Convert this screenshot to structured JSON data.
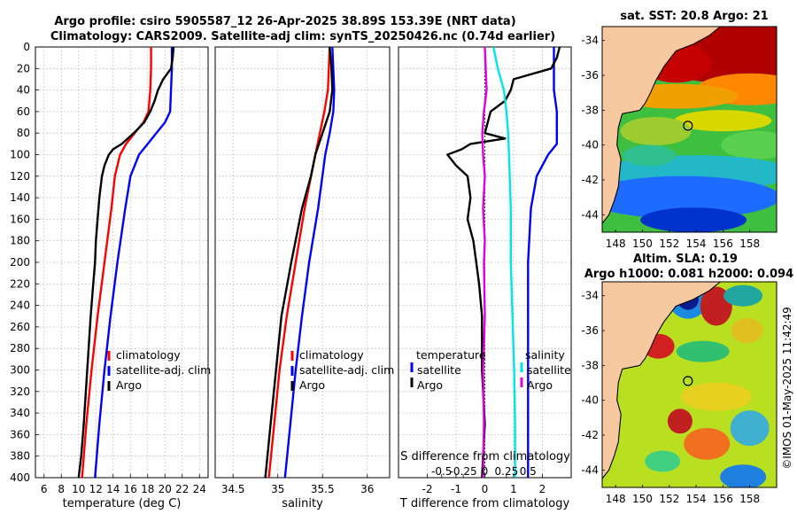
{
  "titles": {
    "line1": "Argo profile: csiro 5905587_12 26-Apr-2025 38.89S 153.39E (NRT data)",
    "line2": "Climatology: CARS2009. Satellite-adj clim: synTS_20250426.nc (0.74d earlier)",
    "sst": "sat. SST: 20.8 Argo: 21",
    "sla1": "Altim. SLA: 0.19",
    "sla2": "Argo h1000: 0.081 h2000: 0.094"
  },
  "credit": "©IMOS 01-May-2025 11:42:49",
  "colors": {
    "climatology": "#ff0000",
    "satellite": "#0000ff",
    "argo": "#000000",
    "sal_diff_sat": "#00e5e5",
    "sal_diff_argo": "#e000e0",
    "land": "#f8c9a0"
  },
  "chart_data": [
    {
      "type": "line",
      "id": "temperature",
      "xlabel": "temperature (deg C)",
      "ylabel": "",
      "xlim": [
        5,
        25
      ],
      "ylim": [
        400,
        0
      ],
      "xticks": [
        "6",
        "8",
        "10",
        "12",
        "14",
        "16",
        "18",
        "20",
        "22",
        "24"
      ],
      "xtick_values": [
        6,
        8,
        10,
        12,
        14,
        16,
        18,
        20,
        22,
        24
      ],
      "yticks": [
        "0",
        "20",
        "40",
        "60",
        "80",
        "100",
        "120",
        "140",
        "160",
        "180",
        "200",
        "220",
        "240",
        "260",
        "280",
        "300",
        "320",
        "340",
        "360",
        "380",
        "400"
      ],
      "ytick_values": [
        0,
        20,
        40,
        60,
        80,
        100,
        120,
        140,
        160,
        180,
        200,
        220,
        240,
        260,
        280,
        300,
        320,
        340,
        360,
        380,
        400
      ],
      "legend": [
        "climatology",
        "satellite-adj. clim",
        "Argo"
      ],
      "series": [
        {
          "name": "climatology",
          "depth": [
            0,
            20,
            40,
            60,
            70,
            80,
            90,
            100,
            120,
            150,
            200,
            250,
            300,
            350,
            400
          ],
          "values": [
            18.4,
            18.4,
            18.3,
            18.1,
            17.5,
            16.5,
            15.5,
            14.8,
            14.2,
            13.8,
            13.0,
            12.2,
            11.5,
            10.9,
            10.4
          ]
        },
        {
          "name": "satellite-adj. clim",
          "depth": [
            0,
            20,
            40,
            60,
            70,
            80,
            90,
            100,
            120,
            150,
            200,
            250,
            300,
            350,
            400
          ],
          "values": [
            20.8,
            20.8,
            20.7,
            20.6,
            20.0,
            19.0,
            18.0,
            17.0,
            16.0,
            15.4,
            14.5,
            13.7,
            13.0,
            12.4,
            11.9
          ]
        },
        {
          "name": "Argo",
          "depth": [
            0,
            10,
            20,
            30,
            40,
            50,
            60,
            70,
            80,
            90,
            95,
            100,
            110,
            120,
            140,
            160,
            180,
            200,
            220,
            250,
            300,
            350,
            380,
            400
          ],
          "values": [
            21.0,
            20.9,
            20.7,
            19.8,
            19.2,
            18.8,
            18.3,
            17.6,
            16.4,
            15.0,
            14.0,
            13.5,
            13.0,
            12.7,
            12.4,
            12.2,
            12.0,
            11.9,
            11.7,
            11.4,
            11.0,
            10.6,
            10.3,
            10.0
          ]
        }
      ]
    },
    {
      "type": "line",
      "id": "salinity",
      "xlabel": "salinity",
      "ylabel": "",
      "xlim": [
        34.3,
        36.25
      ],
      "ylim": [
        400,
        0
      ],
      "xticks": [
        "34.5",
        "35",
        "35.5",
        "36"
      ],
      "xtick_values": [
        34.5,
        35,
        35.5,
        36
      ],
      "legend": [
        "climatology",
        "satellite-adj. clim",
        "Argo"
      ],
      "series": [
        {
          "name": "climatology",
          "depth": [
            0,
            40,
            60,
            80,
            100,
            150,
            200,
            250,
            300,
            350,
            400
          ],
          "values": [
            35.58,
            35.56,
            35.52,
            35.47,
            35.42,
            35.3,
            35.2,
            35.1,
            35.02,
            34.96,
            34.9
          ]
        },
        {
          "name": "satellite-adj. clim",
          "depth": [
            0,
            40,
            60,
            80,
            100,
            150,
            200,
            250,
            300,
            350,
            400
          ],
          "values": [
            35.61,
            35.63,
            35.62,
            35.58,
            35.53,
            35.45,
            35.35,
            35.27,
            35.2,
            35.14,
            35.08
          ]
        },
        {
          "name": "Argo",
          "depth": [
            0,
            20,
            40,
            60,
            80,
            100,
            120,
            150,
            200,
            250,
            300,
            350,
            400
          ],
          "values": [
            35.58,
            35.6,
            35.61,
            35.58,
            35.5,
            35.42,
            35.37,
            35.27,
            35.15,
            35.04,
            34.98,
            34.92,
            34.86
          ]
        }
      ]
    },
    {
      "type": "line",
      "id": "differences",
      "xlabel": "T difference from climatology",
      "xlabel_top": "S difference from climatology",
      "xlim": [
        -3,
        3
      ],
      "ylim": [
        400,
        0
      ],
      "xticks": [
        "-2",
        "-1",
        "0",
        "1",
        "2"
      ],
      "xtick_values": [
        -2,
        -1,
        0,
        1,
        2
      ],
      "sticks": [
        "-0.5",
        "-0.25",
        "0",
        "0.25",
        "0.5"
      ],
      "stick_values_T": [
        -1.5,
        -0.75,
        0,
        0.75,
        1.5
      ],
      "legend_temperature": [
        "temperature",
        "satellite",
        "Argo"
      ],
      "legend_salinity": [
        "salinity",
        "satellite",
        "Argo"
      ],
      "series": [
        {
          "name": "temperature satellite",
          "depth": [
            0,
            20,
            40,
            60,
            70,
            80,
            90,
            100,
            120,
            150,
            200,
            250,
            300,
            350,
            400
          ],
          "values": [
            2.4,
            2.4,
            2.4,
            2.5,
            2.5,
            2.5,
            2.5,
            2.2,
            1.8,
            1.6,
            1.5,
            1.5,
            1.5,
            1.5,
            1.5
          ]
        },
        {
          "name": "temperature Argo",
          "depth": [
            0,
            10,
            20,
            30,
            40,
            50,
            60,
            70,
            80,
            85,
            90,
            95,
            100,
            110,
            120,
            140,
            160,
            180,
            200,
            220,
            250,
            300,
            350,
            400
          ],
          "values": [
            2.6,
            2.5,
            2.3,
            1.0,
            0.9,
            0.7,
            0.2,
            0.1,
            0.0,
            0.7,
            -0.5,
            -0.8,
            -1.3,
            -1.0,
            -0.6,
            -0.5,
            -0.6,
            -0.4,
            -0.3,
            -0.2,
            -0.1,
            -0.1,
            0.0,
            -0.1
          ]
        },
        {
          "name": "salinity satellite",
          "depth": [
            0,
            20,
            40,
            60,
            80,
            100,
            150,
            200,
            250,
            300,
            350,
            400
          ],
          "values": [
            0.1,
            0.15,
            0.22,
            0.25,
            0.27,
            0.28,
            0.3,
            0.3,
            0.32,
            0.34,
            0.35,
            0.35
          ]
        },
        {
          "name": "salinity Argo",
          "depth": [
            0,
            20,
            40,
            60,
            80,
            100,
            120,
            150,
            180,
            200,
            250,
            300,
            350,
            400
          ],
          "values": [
            0.0,
            0.01,
            0.02,
            -0.01,
            -0.03,
            -0.02,
            0.0,
            -0.02,
            0.0,
            -0.01,
            0.0,
            -0.02,
            -0.01,
            -0.02
          ]
        }
      ]
    },
    {
      "type": "heatmap",
      "id": "sst_map",
      "title": "sat. SST: 20.8 Argo: 21",
      "xticks": [
        "148",
        "150",
        "152",
        "154",
        "156",
        "158"
      ],
      "xtick_values": [
        148,
        150,
        152,
        154,
        156,
        158
      ],
      "yticks": [
        "-34",
        "-36",
        "-38",
        "-40",
        "-42",
        "-44"
      ],
      "ytick_values": [
        -34,
        -36,
        -38,
        -40,
        -42,
        -44
      ],
      "xlim": [
        147,
        160
      ],
      "ylim": [
        -45,
        -33.2
      ],
      "argo_position": {
        "lon": 153.39,
        "lat": -38.89
      }
    },
    {
      "type": "heatmap",
      "id": "sla_map",
      "title": "Altim. SLA: 0.19",
      "xticks": [
        "148",
        "150",
        "152",
        "154",
        "156",
        "158"
      ],
      "xtick_values": [
        148,
        150,
        152,
        154,
        156,
        158
      ],
      "yticks": [
        "-34",
        "-36",
        "-38",
        "-40",
        "-42",
        "-44"
      ],
      "ytick_values": [
        -34,
        -36,
        -38,
        -40,
        -42,
        -44
      ],
      "xlim": [
        147,
        160
      ],
      "ylim": [
        -45,
        -33.2
      ],
      "argo_position": {
        "lon": 153.39,
        "lat": -38.89
      }
    }
  ]
}
